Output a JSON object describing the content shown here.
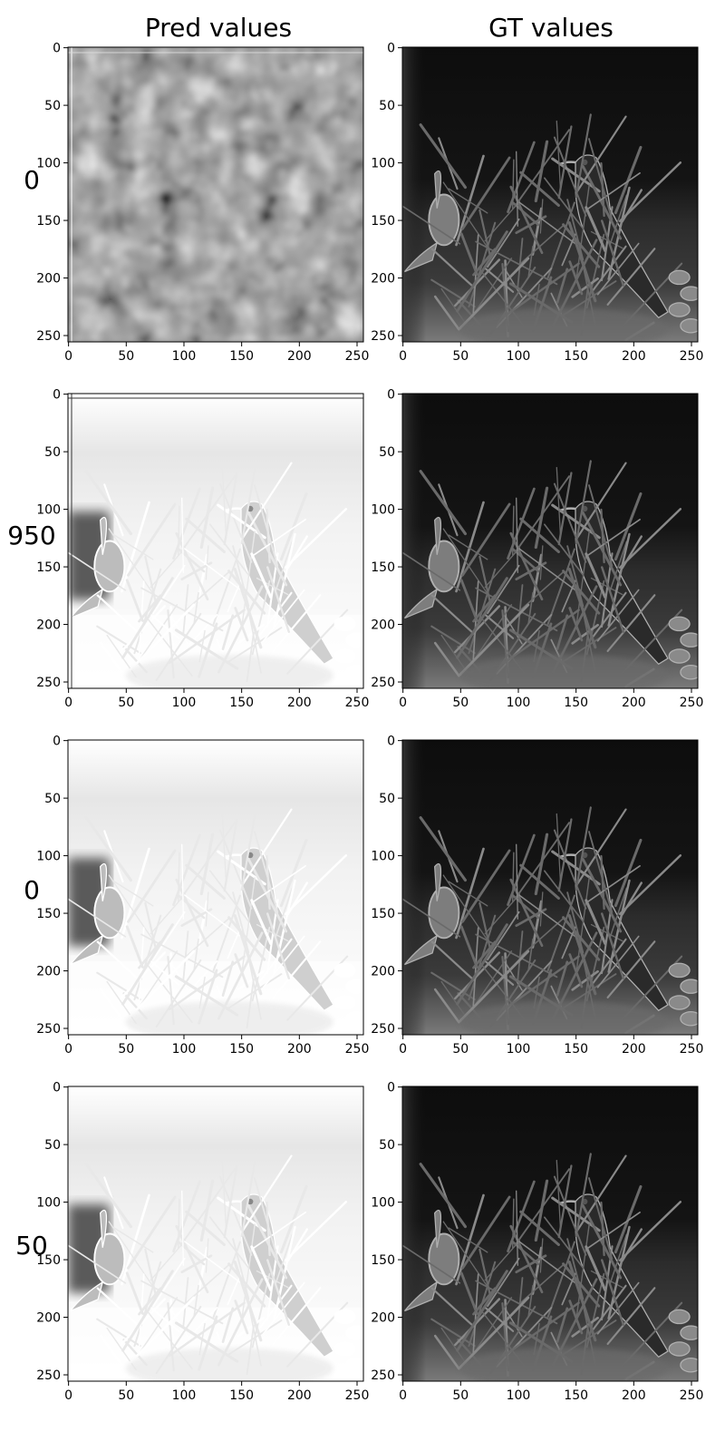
{
  "figure": {
    "column_titles": [
      "Pred values",
      "GT values"
    ],
    "row_labels": [
      "0",
      "950",
      "0",
      "50"
    ]
  },
  "colors": {
    "background": "#ffffff",
    "axis": "#000000",
    "sky_dark": "#111111",
    "sky_mid": "#2a2a2a",
    "pred_light": "#f2f2f2",
    "pred_bright": "#ffffff"
  },
  "chart_data": [
    {
      "type": "heatmap",
      "panel": "pred",
      "row_label": "0",
      "title": "Pred values",
      "xlim": [
        0,
        255
      ],
      "ylim": [
        255,
        0
      ],
      "ticks": [
        0,
        50,
        100,
        150,
        200,
        250
      ],
      "content": "blurry noise grayscale image"
    },
    {
      "type": "heatmap",
      "panel": "gt",
      "row_label": "0",
      "title": "GT values",
      "xlim": [
        0,
        255
      ],
      "ylim": [
        255,
        0
      ],
      "ticks": [
        0,
        50,
        100,
        150,
        200,
        250
      ],
      "content": "grayscale photo of a bird on a plant"
    },
    {
      "type": "heatmap",
      "panel": "pred",
      "row_label": "950",
      "xlim": [
        0,
        255
      ],
      "ylim": [
        255,
        0
      ],
      "ticks": [
        0,
        50,
        100,
        150,
        200,
        250
      ],
      "content": "inverted, bright reconstruction of bird scene"
    },
    {
      "type": "heatmap",
      "panel": "gt",
      "row_label": "950",
      "xlim": [
        0,
        255
      ],
      "ylim": [
        255,
        0
      ],
      "ticks": [
        0,
        50,
        100,
        150,
        200,
        250
      ],
      "content": "grayscale photo of a bird on a plant"
    },
    {
      "type": "heatmap",
      "panel": "pred",
      "row_label": "0",
      "xlim": [
        0,
        255
      ],
      "ylim": [
        255,
        0
      ],
      "ticks": [
        0,
        50,
        100,
        150,
        200,
        250
      ],
      "content": "inverted, bright reconstruction of bird scene"
    },
    {
      "type": "heatmap",
      "panel": "gt",
      "row_label": "0",
      "xlim": [
        0,
        255
      ],
      "ylim": [
        255,
        0
      ],
      "ticks": [
        0,
        50,
        100,
        150,
        200,
        250
      ],
      "content": "grayscale photo of a bird on a plant"
    },
    {
      "type": "heatmap",
      "panel": "pred",
      "row_label": "50",
      "xlim": [
        0,
        255
      ],
      "ylim": [
        255,
        0
      ],
      "ticks": [
        0,
        50,
        100,
        150,
        200,
        250
      ],
      "content": "inverted, bright reconstruction of bird scene"
    },
    {
      "type": "heatmap",
      "panel": "gt",
      "row_label": "50",
      "xlim": [
        0,
        255
      ],
      "ylim": [
        255,
        0
      ],
      "ticks": [
        0,
        50,
        100,
        150,
        200,
        250
      ],
      "content": "grayscale photo of a bird on a plant"
    }
  ]
}
